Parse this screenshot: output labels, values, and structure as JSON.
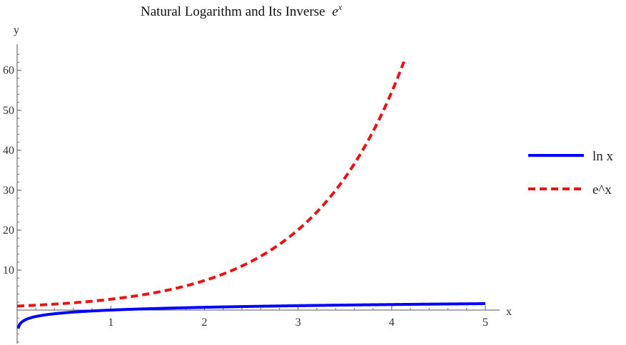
{
  "chart_data": {
    "type": "line",
    "title": "Natural Logarithm and Its Inverse",
    "title_math": "e",
    "title_math_sup": "x",
    "xlabel": "x",
    "ylabel": "y",
    "xlim": [
      0,
      5.2
    ],
    "ylim": [
      -8,
      66
    ],
    "x_ticks": [
      1,
      2,
      3,
      4,
      5
    ],
    "y_ticks": [
      10,
      20,
      30,
      40,
      50,
      60
    ],
    "grid": false,
    "legend_position": "right",
    "series": [
      {
        "name": "ln x",
        "function": "ln",
        "style": "solid",
        "color": "#0000ff",
        "x": [
          0.01,
          0.05,
          0.1,
          0.2,
          0.3,
          0.5,
          0.75,
          1,
          1.5,
          2,
          2.5,
          3,
          3.5,
          4,
          4.5,
          5
        ],
        "y": [
          -4.61,
          -3.0,
          -2.3,
          -1.61,
          -1.2,
          -0.69,
          -0.29,
          0,
          0.41,
          0.69,
          0.92,
          1.1,
          1.25,
          1.39,
          1.5,
          1.61
        ]
      },
      {
        "name": "e^x",
        "function": "exp",
        "style": "dashed",
        "color": "#ee1111",
        "x": [
          0,
          0.5,
          1,
          1.5,
          2,
          2.5,
          3,
          3.25,
          3.5,
          3.75,
          4,
          4.13
        ],
        "y": [
          1,
          1.65,
          2.72,
          4.48,
          7.39,
          12.18,
          20.09,
          25.79,
          33.12,
          42.52,
          54.6,
          62.2
        ]
      }
    ]
  }
}
